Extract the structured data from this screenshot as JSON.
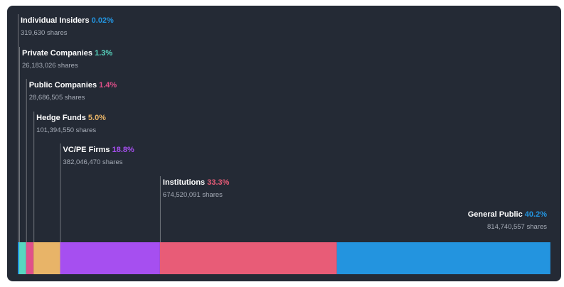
{
  "chart_data": {
    "type": "bar",
    "orientation": "stacked-horizontal",
    "segments": [
      {
        "name": "Individual Insiders",
        "percent_label": "0.02%",
        "value": 0.02,
        "shares": "319,630 shares",
        "color": "#2394df"
      },
      {
        "name": "Private Companies",
        "percent_label": "1.3%",
        "value": 1.3,
        "shares": "26,183,026 shares",
        "color": "#58d6c0"
      },
      {
        "name": "Public Companies",
        "percent_label": "1.4%",
        "value": 1.4,
        "shares": "28,686,505 shares",
        "color": "#e0508a"
      },
      {
        "name": "Hedge Funds",
        "percent_label": "5.0%",
        "value": 5.0,
        "shares": "101,394,550 shares",
        "color": "#e8b468"
      },
      {
        "name": "VC/PE Firms",
        "percent_label": "18.8%",
        "value": 18.8,
        "shares": "382,046,470 shares",
        "color": "#a64ff0"
      },
      {
        "name": "Institutions",
        "percent_label": "33.3%",
        "value": 33.3,
        "shares": "674,520,091 shares",
        "color": "#e85c77"
      },
      {
        "name": "General Public",
        "percent_label": "40.2%",
        "value": 40.2,
        "shares": "814,740,557 shares",
        "color": "#2394df"
      }
    ],
    "background": "#242a35"
  }
}
